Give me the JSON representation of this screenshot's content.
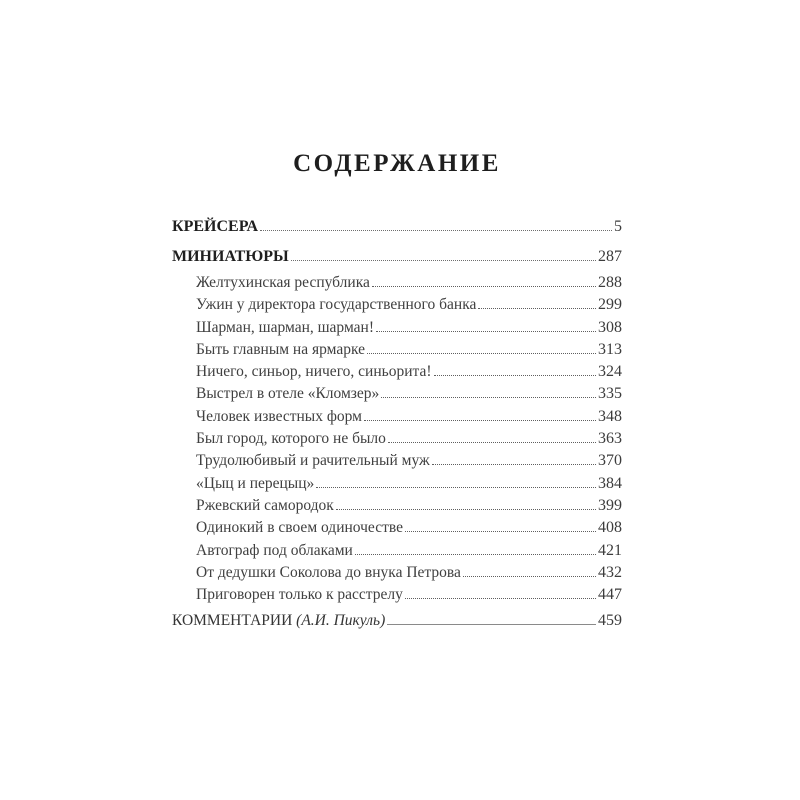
{
  "page": {
    "title": "СОДЕРЖАНИЕ"
  },
  "toc": {
    "entries": [
      {
        "label": "КРЕЙСЕРА",
        "page": "5",
        "type": "heading"
      },
      {
        "label": "МИНИАТЮРЫ",
        "page": "287",
        "type": "heading"
      },
      {
        "label": "Желтухинская республика",
        "page": "288",
        "type": "item"
      },
      {
        "label": "Ужин у директора государственного банка",
        "page": "299",
        "type": "item"
      },
      {
        "label": "Шарман, шарман, шарман!",
        "page": "308",
        "type": "item"
      },
      {
        "label": "Быть главным на ярмарке",
        "page": "313",
        "type": "item"
      },
      {
        "label": "Ничего, синьор, ничего, синьорита!",
        "page": "324",
        "type": "item"
      },
      {
        "label": "Выстрел в отеле «Кломзер»",
        "page": "335",
        "type": "item"
      },
      {
        "label": "Человек известных форм",
        "page": "348",
        "type": "item"
      },
      {
        "label": "Был город, которого не было",
        "page": "363",
        "type": "item"
      },
      {
        "label": "Трудолюбивый и рачительный муж",
        "page": "370",
        "type": "item"
      },
      {
        "label": "«Цыц и перецыц»",
        "page": "384",
        "type": "item"
      },
      {
        "label": "Ржевский самородок",
        "page": "399",
        "type": "item"
      },
      {
        "label": "Одинокий в своем одиночестве",
        "page": "408",
        "type": "item"
      },
      {
        "label": "Автограф под облаками",
        "page": "421",
        "type": "item"
      },
      {
        "label": "От дедушки Соколова до внука Петрова",
        "page": "432",
        "type": "item"
      },
      {
        "label": "Приговорен только к расстрелу",
        "page": "447",
        "type": "item"
      },
      {
        "label": "КОММЕНТАРИИ ",
        "suffix": "(А.И. Пикуль)",
        "page": "459",
        "type": "comment"
      }
    ],
    "colors": {
      "background": "#ffffff",
      "heading_text": "#1f1f1f",
      "item_text": "#404040",
      "leader_dots": "#5f5f5f"
    }
  }
}
